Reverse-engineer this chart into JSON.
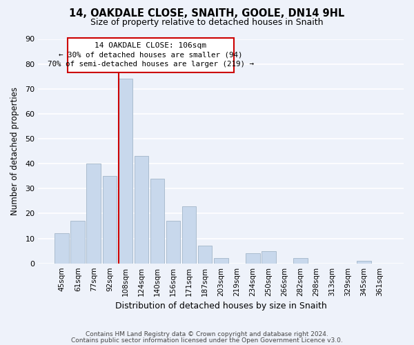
{
  "title1": "14, OAKDALE CLOSE, SNAITH, GOOLE, DN14 9HL",
  "title2": "Size of property relative to detached houses in Snaith",
  "xlabel": "Distribution of detached houses by size in Snaith",
  "ylabel": "Number of detached properties",
  "categories": [
    "45sqm",
    "61sqm",
    "77sqm",
    "92sqm",
    "108sqm",
    "124sqm",
    "140sqm",
    "156sqm",
    "171sqm",
    "187sqm",
    "203sqm",
    "219sqm",
    "234sqm",
    "250sqm",
    "266sqm",
    "282sqm",
    "298sqm",
    "313sqm",
    "329sqm",
    "345sqm",
    "361sqm"
  ],
  "values": [
    12,
    17,
    40,
    35,
    74,
    43,
    34,
    17,
    23,
    7,
    2,
    0,
    4,
    5,
    0,
    2,
    0,
    0,
    0,
    1,
    0
  ],
  "bar_color": "#c8d8ec",
  "bar_edge_color": "#aabcce",
  "highlight_index": 4,
  "highlight_line_color": "#cc0000",
  "ylim": [
    0,
    90
  ],
  "yticks": [
    0,
    10,
    20,
    30,
    40,
    50,
    60,
    70,
    80,
    90
  ],
  "annotation_title": "14 OAKDALE CLOSE: 106sqm",
  "annotation_line1": "← 30% of detached houses are smaller (94)",
  "annotation_line2": "70% of semi-detached houses are larger (219) →",
  "annotation_box_edge": "#cc0000",
  "footer1": "Contains HM Land Registry data © Crown copyright and database right 2024.",
  "footer2": "Contains public sector information licensed under the Open Government Licence v3.0.",
  "bg_color": "#eef2fa",
  "grid_color": "#ffffff",
  "figsize": [
    6.0,
    5.0
  ],
  "dpi": 100
}
